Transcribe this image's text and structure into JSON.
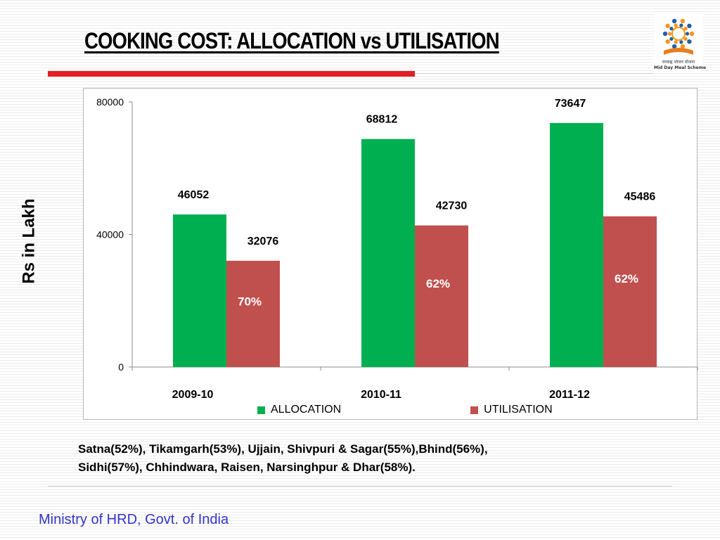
{
  "slide": {
    "title": "COOKING COST: ALLOCATION vs UTILISATION",
    "y_axis_label": "Rs in Lakh",
    "note_line1": "Satna(52%), Tikamgarh(53%), Ujjain, Shivpuri & Sagar(55%),Bhind(56%),",
    "note_line2": "Sidhi(57%), Chhindwara, Raisen, Narsinghpur & Dhar(58%).",
    "footer": "Ministry of HRD, Govt. of India",
    "logo": {
      "line1": "मध्याह्न भोजन योजना",
      "line2": "Mid Day Meal Scheme",
      "colors": {
        "orange": "#f39c12",
        "blue": "#1f5fa8",
        "figure": "#f7941d"
      }
    }
  },
  "chart_data": {
    "type": "bar",
    "categories": [
      "2009-10",
      "2010-11",
      "2011-12"
    ],
    "series": [
      {
        "name": "ALLOCATION",
        "values": [
          46052,
          68812,
          73647
        ],
        "color": "#00b050"
      },
      {
        "name": "UTILISATION",
        "values": [
          32076,
          42730,
          45486
        ],
        "color": "#c0504d"
      }
    ],
    "bar_annotations": [
      "70%",
      "62%",
      "62%"
    ],
    "annotation_color": "#ffffff",
    "y_ticks": [
      "0",
      "40000",
      "80000"
    ],
    "ylim": [
      0,
      80000
    ],
    "legend_position": "bottom",
    "grid": false
  }
}
